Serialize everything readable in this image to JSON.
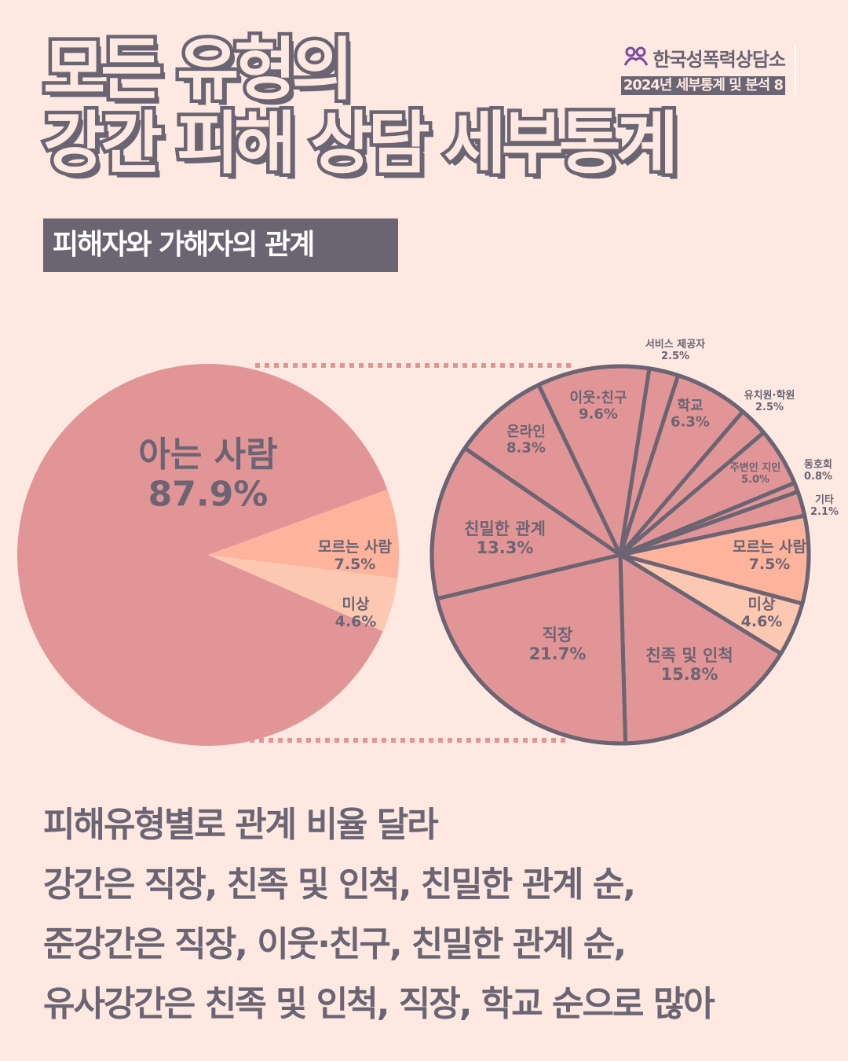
{
  "title": {
    "line1": "모든 유형의",
    "line2": "강간 피해 상담 세부통계"
  },
  "org": {
    "name": "한국성폭력상담소",
    "subtitle": "2024년 세부통계 및 분석 8",
    "logo_icon": "people-logo-icon"
  },
  "section_label": "피해자와 가해자의 관계",
  "colors": {
    "background": "#fde8e2",
    "dark": "#6b6472",
    "known": "#e29596",
    "unknown": "#fdb39c",
    "unclear": "#fdc8b1"
  },
  "chart_data": [
    {
      "type": "pie",
      "slices": [
        {
          "label": "아는 사람",
          "value": 87.9,
          "value_label": "87.9%",
          "color": "#e29596"
        },
        {
          "label": "모르는 사람",
          "value": 7.5,
          "value_label": "7.5%",
          "color": "#fdb39c"
        },
        {
          "label": "미상",
          "value": 4.6,
          "value_label": "4.6%",
          "color": "#fdc8b1"
        }
      ]
    },
    {
      "type": "pie",
      "slices": [
        {
          "label": "모르는 사람",
          "value": 7.5,
          "value_label": "7.5%",
          "color": "#fdb39c"
        },
        {
          "label": "미상",
          "value": 4.6,
          "value_label": "4.6%",
          "color": "#fdc8b1"
        },
        {
          "label": "친족 및 인척",
          "value": 15.8,
          "value_label": "15.8%",
          "color": "#e29596"
        },
        {
          "label": "직장",
          "value": 21.7,
          "value_label": "21.7%",
          "color": "#e29596"
        },
        {
          "label": "친밀한 관계",
          "value": 13.3,
          "value_label": "13.3%",
          "color": "#e29596"
        },
        {
          "label": "온라인",
          "value": 8.3,
          "value_label": "8.3%",
          "color": "#e29596"
        },
        {
          "label": "이웃·친구",
          "value": 9.6,
          "value_label": "9.6%",
          "color": "#e29596"
        },
        {
          "label": "서비스 제공자",
          "value": 2.5,
          "value_label": "2.5%",
          "color": "#e29596"
        },
        {
          "label": "학교",
          "value": 6.3,
          "value_label": "6.3%",
          "color": "#e29596"
        },
        {
          "label": "유치원·학원",
          "value": 2.5,
          "value_label": "2.5%",
          "color": "#e29596"
        },
        {
          "label": "주변인 지인",
          "value": 5.0,
          "value_label": "5.0%",
          "color": "#e29596"
        },
        {
          "label": "동호회",
          "value": 0.8,
          "value_label": "0.8%",
          "color": "#e29596"
        },
        {
          "label": "기타",
          "value": 2.1,
          "value_label": "2.1%",
          "color": "#e29596"
        }
      ]
    }
  ],
  "summary": [
    "피해유형별로 관계 비율 달라",
    "강간은 직장, 친족 및 인척, 친밀한 관계 순,",
    "준강간은 직장, 이웃·친구, 친밀한 관계 순,",
    "유사강간은 친족 및 인척, 직장, 학교 순으로 많아"
  ]
}
